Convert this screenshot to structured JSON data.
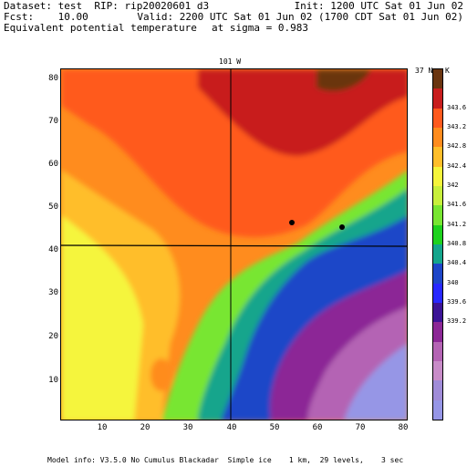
{
  "header": {
    "line1_left": "Dataset: test  RIP: rip20020601 d3",
    "line1_right": "Init: 1200 UTC Sat 01 Jun 02",
    "line2_left": "Fcst:    10.00",
    "line2_right": "Valid: 2200 UTC Sat 01 Jun 02 (1700 CDT Sat 01 Jun 02)",
    "line3_left": "Equivalent potential temperature",
    "line3_right": "at sigma = 0.983"
  },
  "map": {
    "top_label": "101 W",
    "right_label": "37 N",
    "units": "K",
    "x_ticks": [
      "10",
      "20",
      "30",
      "40",
      "50",
      "60",
      "70",
      "80"
    ],
    "y_ticks": [
      "10",
      "20",
      "30",
      "40",
      "50",
      "60"
    ]
  },
  "colorbar": {
    "labels": [
      "343.6",
      "343.2",
      "342.8",
      "342.4",
      "342",
      "341.6",
      "341.2",
      "340.8",
      "340.4",
      "340",
      "339.6",
      "339.2"
    ],
    "colors": [
      "#6a3510",
      "#c81e1e",
      "#ff5a1e",
      "#ff8c1e",
      "#ffbe2a",
      "#f5f53c",
      "#c8f03c",
      "#78e632",
      "#1ed21e",
      "#14a58c",
      "#1e46c8",
      "#2828ff",
      "#3c1496",
      "#8c2896",
      "#b464b4",
      "#c88cc8",
      "#a08cd8",
      "#9696e6"
    ]
  },
  "footer": {
    "text": "Model info: V3.5.0 No Cumulus Blackadar  Simple ice    1 km,  29 levels,    3 sec"
  }
}
